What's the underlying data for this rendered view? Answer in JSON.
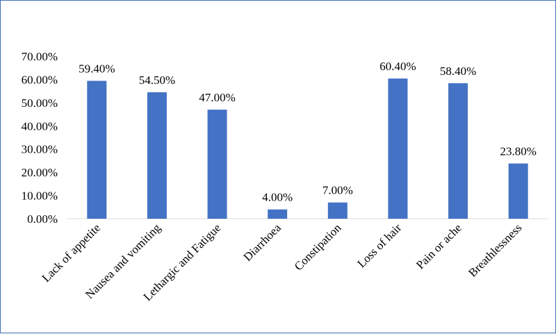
{
  "chart_data": {
    "type": "bar",
    "title": "",
    "xlabel": "",
    "ylabel": "",
    "ylim": [
      0,
      70
    ],
    "y_ticks": [
      "0.00%",
      "10.00%",
      "20.00%",
      "30.00%",
      "40.00%",
      "50.00%",
      "60.00%",
      "70.00%"
    ],
    "categories": [
      "Lack of appetite",
      "Nausea and vomiting",
      "Lethargic and Fatigue",
      "Diarrhoea",
      "Constipation",
      "Loss of hair",
      "Pain or ache",
      "Breathlessness"
    ],
    "values": [
      59.4,
      54.5,
      47.0,
      4.0,
      7.0,
      60.4,
      58.4,
      23.8
    ],
    "data_labels": [
      "59.40%",
      "54.50%",
      "47.00%",
      "4.00%",
      "7.00%",
      "60.40%",
      "58.40%",
      "23.80%"
    ],
    "grid": false,
    "legend": "none",
    "bar_color": "#4472c4",
    "axis_color": "#d9d9d9"
  }
}
